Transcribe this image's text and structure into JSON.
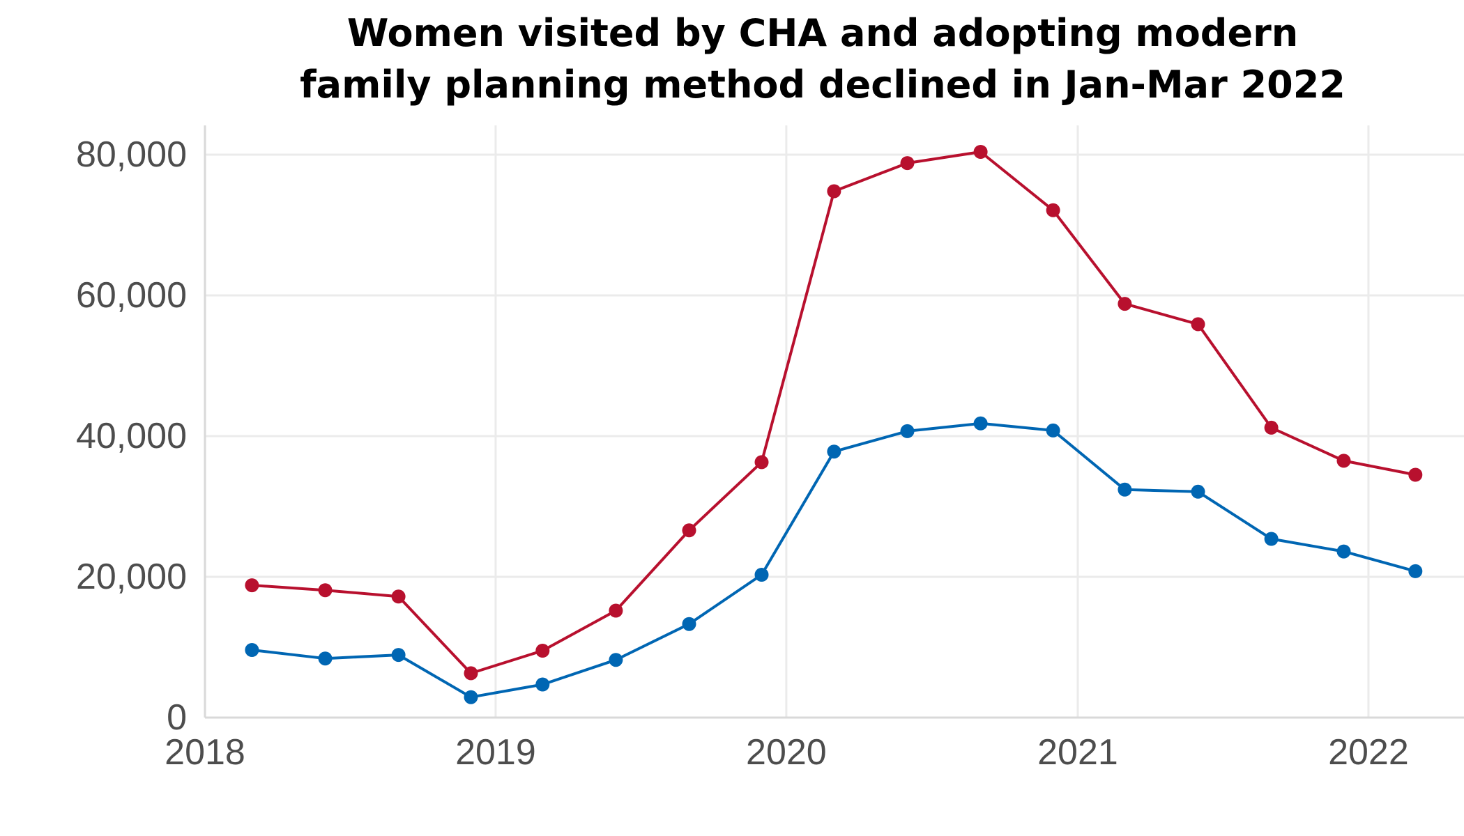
{
  "chart_data": {
    "type": "line",
    "title_lines": [
      "Women visited by CHA and adopting modern",
      "family planning method declined in Jan-Mar 2022"
    ],
    "xlabel": "",
    "ylabel": "",
    "x": [
      "2018-03-01",
      "2018-06-01",
      "2018-09-01",
      "2018-12-01",
      "2019-03-01",
      "2019-06-01",
      "2019-09-01",
      "2019-12-01",
      "2020-03-01",
      "2020-06-01",
      "2020-09-01",
      "2020-12-01",
      "2021-03-01",
      "2021-06-01",
      "2021-09-01",
      "2021-12-01",
      "2022-03-01"
    ],
    "xlim": [
      "2018-01-01",
      "2022-05-01"
    ],
    "x_ticks": [
      "2018",
      "2019",
      "2020",
      "2021",
      "2022"
    ],
    "ylim": [
      0,
      80000
    ],
    "y_ticks": [
      "0",
      "20,000",
      "40,000",
      "60,000",
      "80,000"
    ],
    "y_tick_values": [
      0,
      20000,
      40000,
      60000,
      80000
    ],
    "grid": true,
    "legend": "none",
    "series": [
      {
        "color": "#b8102e",
        "values": [
          18800,
          18100,
          17200,
          6300,
          9500,
          15200,
          26600,
          36300,
          74800,
          78800,
          80400,
          72100,
          58800,
          55900,
          41200,
          36500,
          34500
        ]
      },
      {
        "color": "#0066b3",
        "values": [
          9600,
          8400,
          8900,
          2900,
          4700,
          8200,
          13300,
          20300,
          37800,
          40700,
          41800,
          40800,
          32400,
          32100,
          25400,
          23600,
          20800
        ]
      }
    ]
  }
}
